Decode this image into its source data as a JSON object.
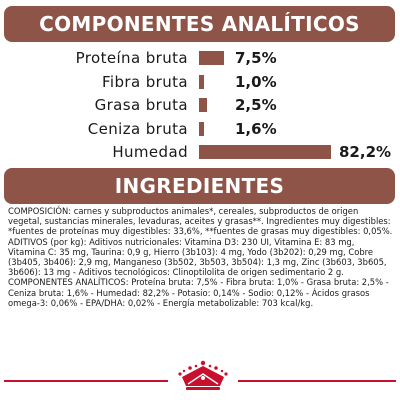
{
  "analytics": {
    "title": "COMPONENTES ANALÍTICOS",
    "rows": [
      {
        "label": "Proteína bruta",
        "value": "7,5%",
        "amount": 7.5
      },
      {
        "label": "Fibra bruta",
        "value": "1,0%",
        "amount": 1.0
      },
      {
        "label": "Grasa bruta",
        "value": "2,5%",
        "amount": 2.5
      },
      {
        "label": "Ceniza bruta",
        "value": "1,6%",
        "amount": 1.6
      },
      {
        "label": "Humedad",
        "value": "82,2%",
        "amount": 82.2
      }
    ]
  },
  "ingredients": {
    "title": "INGREDIENTES",
    "composition": "COMPOSICIÓN: carnes y subproductos animales*, cereales, subproductos de origen vegetal, sustancias minerales, levaduras, aceites y grasas**. Ingredientes muy digestibles: *fuentes de proteínas muy digestibles: 33,6%, **fuentes de grasas muy digestibles: 0,05%.",
    "additives": "ADITIVOS (por kg): Aditivos nutricionales: Vitamina D3: 230 UI, Vitamina E: 83 mg, Vitamina C: 35 mg, Taurina: 0,9 g, Hierro (3b103): 4 mg, Yodo (3b202): 0,29 mg, Cobre (3b405, 3b406): 2,9 mg, Manganeso (3b502, 3b503, 3b504): 1,3 mg, Zinc (3b603, 3b605, 3b606): 13 mg - Aditivos tecnológicos: Clinoptilolita de origen sedimentario 2 g.",
    "analytical": "COMPONENTES ANALÍTICOS: Proteína bruta: 7,5% - Fibra bruta: 1,0% - Grasa bruta: 2,5% - Ceniza bruta: 1,6% - Humedad: 82,2% - Potasio: 0,14% - Sodio: 0,12% - Ácidos grasos omega-3: 0,06% - EPA/DHA: 0,02% - Energía metabolizable: 703 kcal/kg."
  },
  "footer": {
    "logo": "royal-canin-crown-logo"
  },
  "colors": {
    "accent": "#8e5448",
    "brand_red": "#c8102e"
  }
}
